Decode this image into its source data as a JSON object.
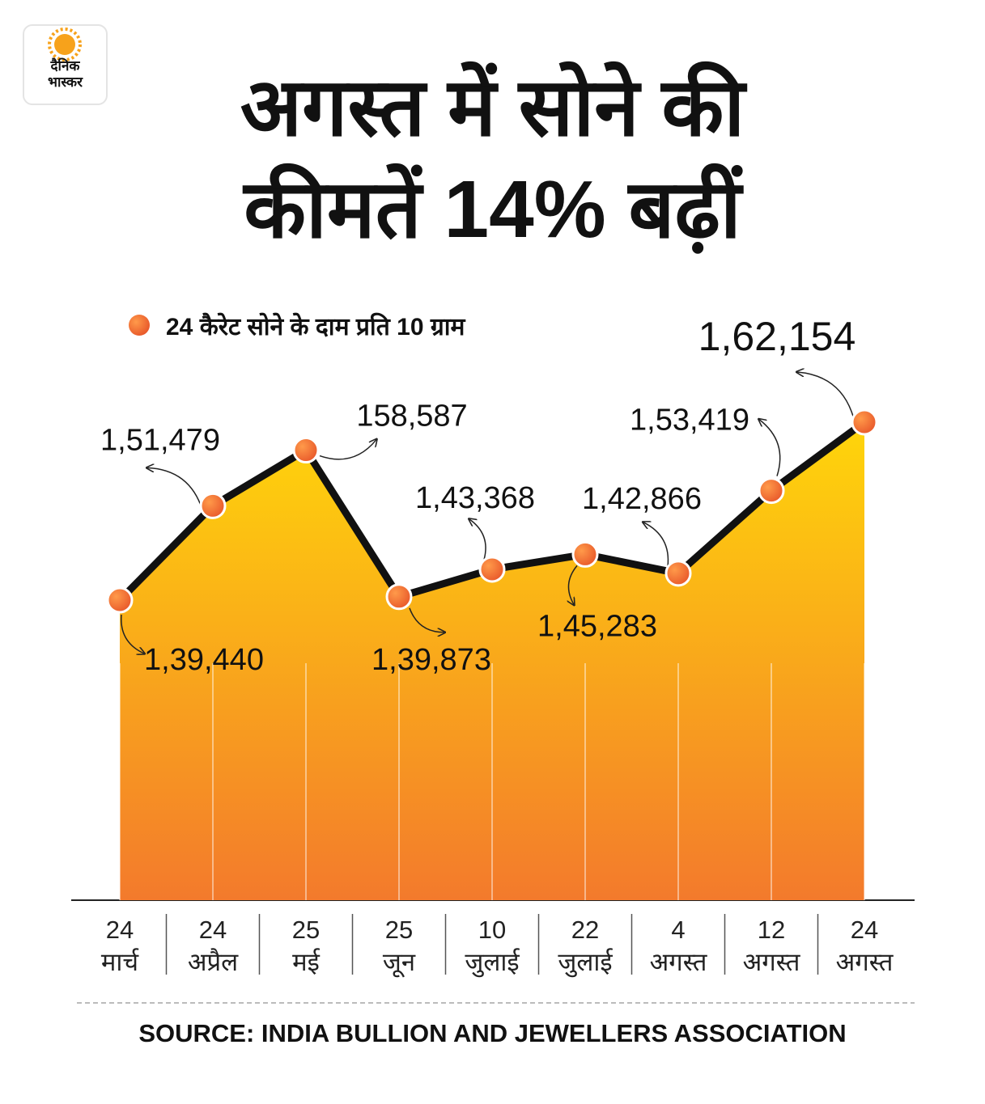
{
  "logo": {
    "text": "दैनिक\nभास्कर"
  },
  "chart_data": {
    "type": "line",
    "title": "अगस्त में सोने की\nकीमतें 14% बढ़ीं",
    "categories": [
      "24\nमार्च",
      "24\nअप्रैल",
      "25\nमई",
      "25\nजून",
      "10\nजुलाई",
      "22\nजुलाई",
      "4\nअगस्त",
      "12\nअगस्त",
      "24\nअगस्त"
    ],
    "series": [
      {
        "name": "24 कैरेट सोने के दाम प्रति 10 ग्राम",
        "color": "#111111",
        "marker_color": "#e8582a",
        "values": [
          139440,
          151479,
          158587,
          139873,
          143368,
          145283,
          142866,
          153419,
          162154
        ],
        "value_labels": [
          "1,39,440",
          "1,51,479",
          "158,587",
          "1,39,873",
          "1,43,368",
          "1,45,283",
          "1,42,866",
          "1,53,419",
          "1,62,154"
        ]
      }
    ],
    "area_colors": [
      "#ffd60a",
      "#f37a2c"
    ],
    "source": "SOURCE: INDIA BULLION AND JEWELLERS ASSOCIATION"
  }
}
